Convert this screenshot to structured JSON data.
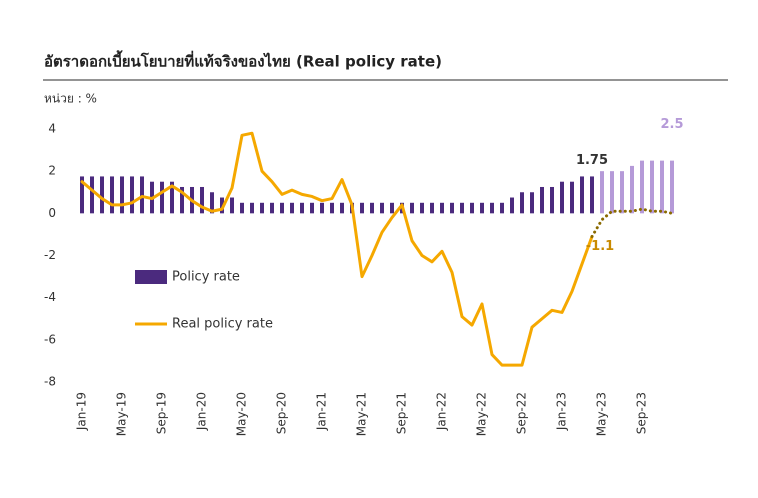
{
  "chart_data": {
    "type": "bar_line",
    "title": "อัตราดอกเบี้ยนโยบายที่แท้จริงของไทย (Real policy rate)",
    "unit_label": "หน่วย : %",
    "categories": [
      "Jan-19",
      null,
      null,
      null,
      "May-19",
      null,
      null,
      null,
      "Sep-19",
      null,
      null,
      null,
      "Jan-20",
      null,
      null,
      null,
      "May-20",
      null,
      null,
      null,
      "Sep-20",
      null,
      null,
      null,
      "Jan-21",
      null,
      null,
      null,
      "May-21",
      null,
      null,
      null,
      "Sep-21",
      null,
      null,
      null,
      "Jan-22",
      null,
      null,
      null,
      "May-22",
      null,
      null,
      null,
      "Sep-22",
      null,
      null,
      null,
      "Jan-23",
      null,
      null,
      null,
      "May-23",
      null,
      null,
      null,
      "Sep-23",
      null,
      null,
      null
    ],
    "ylim": [
      -8,
      4
    ],
    "yticks": [
      4,
      2,
      0,
      -2,
      -4,
      -6,
      -8
    ],
    "series": [
      {
        "name": "Policy rate",
        "kind": "bar",
        "color": "#4b2a7e",
        "forecast_color": "#b59ad8",
        "values": [
          1.75,
          1.75,
          1.75,
          1.75,
          1.75,
          1.75,
          1.75,
          1.5,
          1.5,
          1.5,
          1.25,
          1.25,
          1.25,
          1.0,
          0.75,
          0.75,
          0.5,
          0.5,
          0.5,
          0.5,
          0.5,
          0.5,
          0.5,
          0.5,
          0.5,
          0.5,
          0.5,
          0.5,
          0.5,
          0.5,
          0.5,
          0.5,
          0.5,
          0.5,
          0.5,
          0.5,
          0.5,
          0.5,
          0.5,
          0.5,
          0.5,
          0.5,
          0.5,
          0.75,
          1.0,
          1.0,
          1.25,
          1.25,
          1.5,
          1.5,
          1.75,
          1.75,
          null,
          null,
          null,
          null,
          null,
          null,
          null,
          null
        ],
        "value_labels": [
          null,
          null,
          null,
          null,
          null,
          null,
          null,
          null,
          null,
          null,
          null,
          null,
          null,
          null,
          null,
          null,
          null,
          null,
          null,
          null,
          null,
          null,
          null,
          null,
          null,
          null,
          null,
          null,
          null,
          null,
          null,
          null,
          null,
          null,
          null,
          null,
          null,
          null,
          null,
          null,
          null,
          null,
          null,
          null,
          null,
          null,
          null,
          null,
          null,
          null,
          null,
          "1.75",
          null,
          null,
          null,
          null,
          null,
          null,
          null,
          null
        ],
        "forecast_values": [
          null,
          null,
          null,
          null,
          null,
          null,
          null,
          null,
          null,
          null,
          null,
          null,
          null,
          null,
          null,
          null,
          null,
          null,
          null,
          null,
          null,
          null,
          null,
          null,
          null,
          null,
          null,
          null,
          null,
          null,
          null,
          null,
          null,
          null,
          null,
          null,
          null,
          null,
          null,
          null,
          null,
          null,
          null,
          null,
          null,
          null,
          null,
          null,
          null,
          null,
          null,
          null,
          2.0,
          2.0,
          2.0,
          2.25,
          2.5,
          2.5,
          2.5,
          2.5
        ],
        "forecast_value_labels": [
          null,
          null,
          null,
          null,
          null,
          null,
          null,
          null,
          null,
          null,
          null,
          null,
          null,
          null,
          null,
          null,
          null,
          null,
          null,
          null,
          null,
          null,
          null,
          null,
          null,
          null,
          null,
          null,
          null,
          null,
          null,
          null,
          null,
          null,
          null,
          null,
          null,
          null,
          null,
          null,
          null,
          null,
          null,
          null,
          null,
          null,
          null,
          null,
          null,
          null,
          null,
          null,
          null,
          null,
          null,
          null,
          null,
          null,
          null,
          "2.5"
        ]
      },
      {
        "name": "Real policy rate",
        "kind": "line",
        "color": "#f5a800",
        "forecast_color": "#8a6a00",
        "values": [
          1.5,
          1.1,
          0.7,
          0.4,
          0.4,
          0.5,
          0.8,
          0.7,
          1.0,
          1.3,
          1.0,
          0.6,
          0.3,
          0.1,
          0.2,
          1.2,
          3.7,
          3.8,
          2.0,
          1.5,
          0.9,
          1.1,
          0.9,
          0.8,
          0.6,
          0.7,
          1.6,
          0.4,
          -3.0,
          -2.0,
          -0.9,
          -0.2,
          0.4,
          -1.3,
          -2.0,
          -2.3,
          -1.8,
          -2.8,
          -4.9,
          -5.3,
          -4.3,
          -6.7,
          -7.2,
          -7.2,
          -7.2,
          -5.4,
          -5.0,
          -4.6,
          -4.7,
          -3.7,
          -2.4,
          -1.1,
          null,
          null,
          null,
          null,
          null,
          null,
          null,
          null
        ],
        "value_labels": [
          null,
          null,
          null,
          null,
          null,
          null,
          null,
          null,
          null,
          null,
          null,
          null,
          null,
          null,
          null,
          null,
          null,
          null,
          null,
          null,
          null,
          null,
          null,
          null,
          null,
          null,
          null,
          null,
          null,
          null,
          null,
          null,
          null,
          null,
          null,
          null,
          null,
          null,
          null,
          null,
          null,
          null,
          null,
          null,
          null,
          null,
          null,
          null,
          null,
          null,
          null,
          "-1.1",
          null,
          null,
          null,
          null,
          null,
          null,
          null,
          null
        ],
        "forecast_values": [
          null,
          null,
          null,
          null,
          null,
          null,
          null,
          null,
          null,
          null,
          null,
          null,
          null,
          null,
          null,
          null,
          null,
          null,
          null,
          null,
          null,
          null,
          null,
          null,
          null,
          null,
          null,
          null,
          null,
          null,
          null,
          null,
          null,
          null,
          null,
          null,
          null,
          null,
          null,
          null,
          null,
          null,
          null,
          null,
          null,
          null,
          null,
          null,
          null,
          null,
          null,
          -1.1,
          -0.3,
          0.1,
          0.1,
          0.1,
          0.2,
          0.1,
          0.1,
          0.0
        ]
      }
    ]
  }
}
